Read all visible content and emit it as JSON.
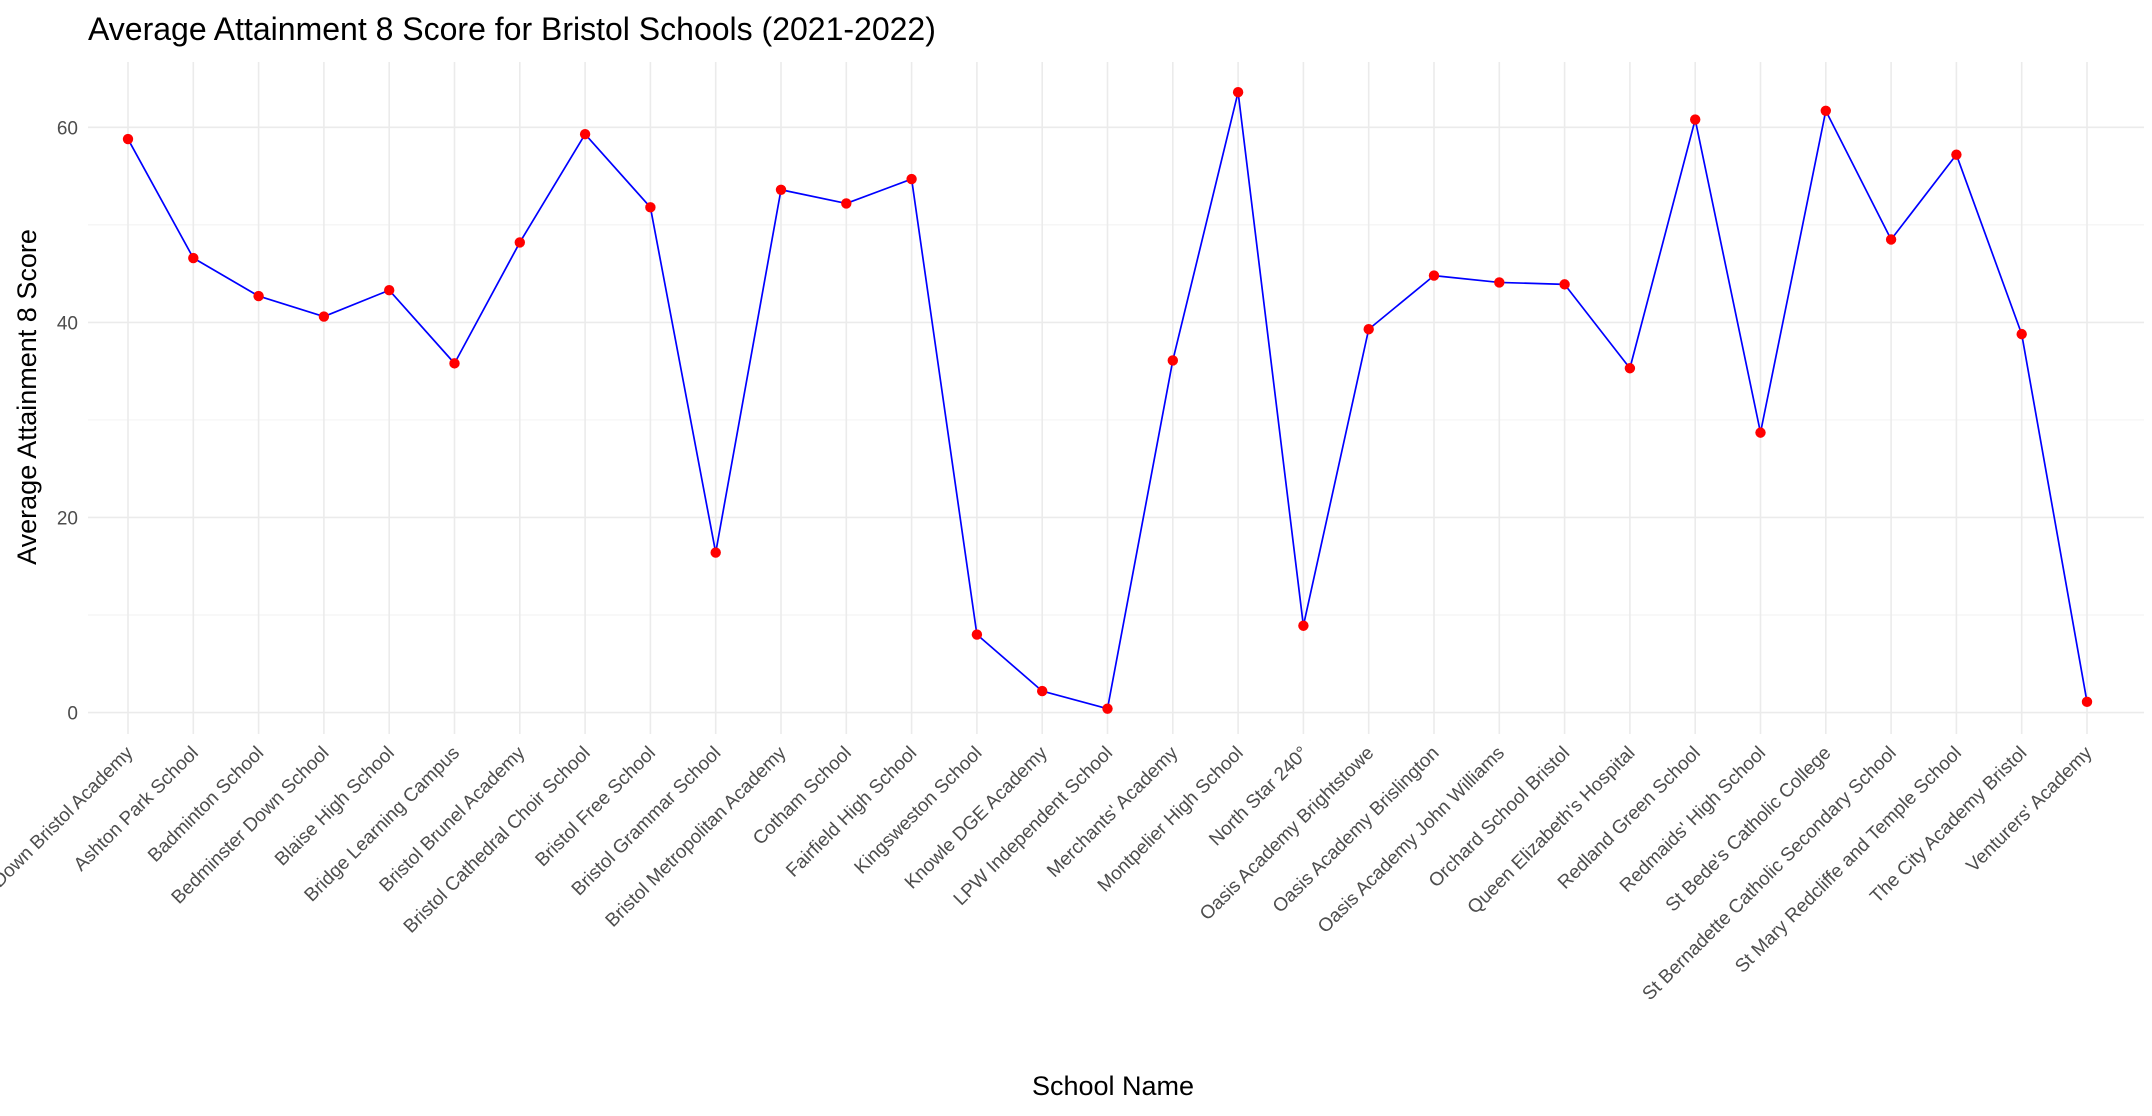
{
  "chart_data": {
    "type": "line",
    "title": "Average Attainment 8 Score for Bristol Schools (2021-2022)",
    "xlabel": "School Name",
    "ylabel": "Average Attainment 8 Score",
    "ylim": [
      -2.2,
      66.7
    ],
    "yticks": [
      0,
      20,
      40,
      60
    ],
    "yticks_labels": [
      "0",
      "20",
      "40",
      "60"
    ],
    "grid": true,
    "line_color": "#0000ff",
    "point_color": "#ff0000",
    "categories": [
      "Ashley Down Bristol Academy",
      "Ashton Park School",
      "Badminton School",
      "Bedminster Down School",
      "Blaise High School",
      "Bridge Learning Campus",
      "Bristol Brunel Academy",
      "Bristol Cathedral Choir School",
      "Bristol Free School",
      "Bristol Grammar School",
      "Bristol Metropolitan Academy",
      "Cotham School",
      "Fairfield High School",
      "Kingsweston School",
      "Knowle DGE Academy",
      "LPW Independent School",
      "Merchants' Academy",
      "Montpelier High School",
      "North Star 240°",
      "Oasis Academy Brightstowe",
      "Oasis Academy Brislington",
      "Oasis Academy John Williams",
      "Orchard School Bristol",
      "Queen Elizabeth's Hospital",
      "Redland Green School",
      "Redmaids' High School",
      "St Bede's Catholic College",
      "St Bernadette Catholic Secondary School",
      "St Mary Redcliffe and Temple School",
      "The City Academy Bristol",
      "Venturers' Academy"
    ],
    "series": [
      {
        "values": [
          58.8,
          46.6,
          42.7,
          40.6,
          43.3,
          35.8,
          48.2,
          59.3,
          51.8,
          16.4,
          53.6,
          52.2,
          54.7,
          8.0,
          2.2,
          0.4,
          36.1,
          63.6,
          8.9,
          39.3,
          44.8,
          44.1,
          43.9,
          35.3,
          60.8,
          28.7,
          61.7,
          48.5,
          57.2,
          38.8,
          1.1
        ]
      }
    ]
  }
}
